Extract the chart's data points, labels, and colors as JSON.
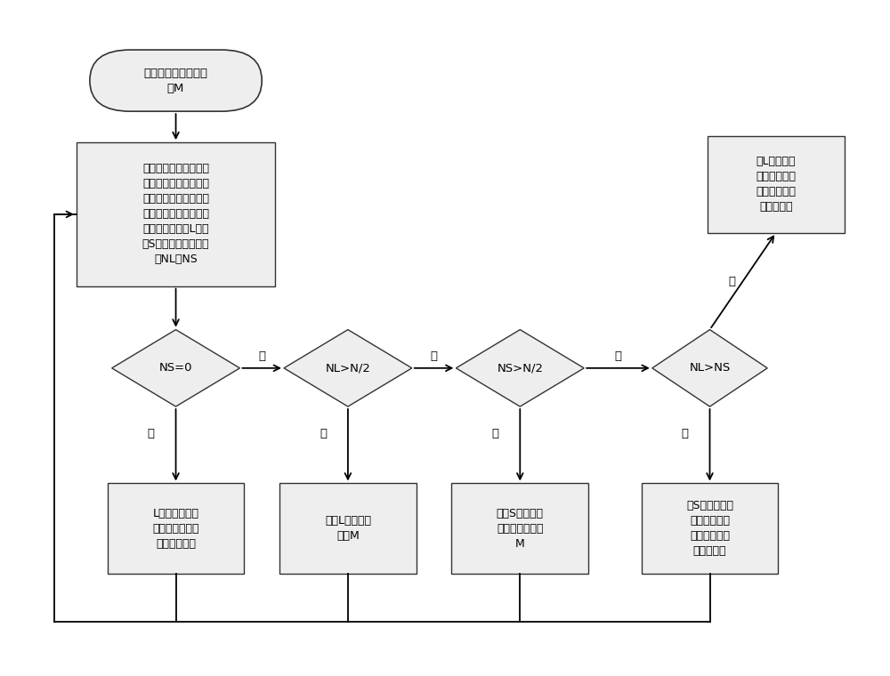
{
  "bg_color": "#ffffff",
  "border_color": "#333333",
  "shape_fill": "#eeeeee",
  "text_color": "#000000",
  "font_size": 9.5,
  "nodes": {
    "start_text": "获取滤波子航向角均\n值M",
    "proc_text": "将滤波子窗口内航向角\n分为大于等于该航向角\n的均值和小于该航向角\n的均值的两个航向角集\n合，分别为集合L和集\n合S，航向角数量分别\n为NL、NS",
    "d1_text": "NS=0",
    "d2_text": "NL>N/2",
    "d3_text": "NS>N/2",
    "d4_text": "NL>NS",
    "r1_text": "L集合中第一个\n航向角作为滤波\n子窗口航向角",
    "r2_text": "计算L集航向角\n均值M",
    "r3_text": "计算S集合中航\n向角均值，记为\nM",
    "r4_text": "对S集合航向角\n排序，取中值\n作为滤波子窗\n口中航向角",
    "r5_text": "对L集合航向\n角排序，取中\n值作为滤波子\n窗口航向角",
    "yes": "是",
    "no": "否"
  }
}
